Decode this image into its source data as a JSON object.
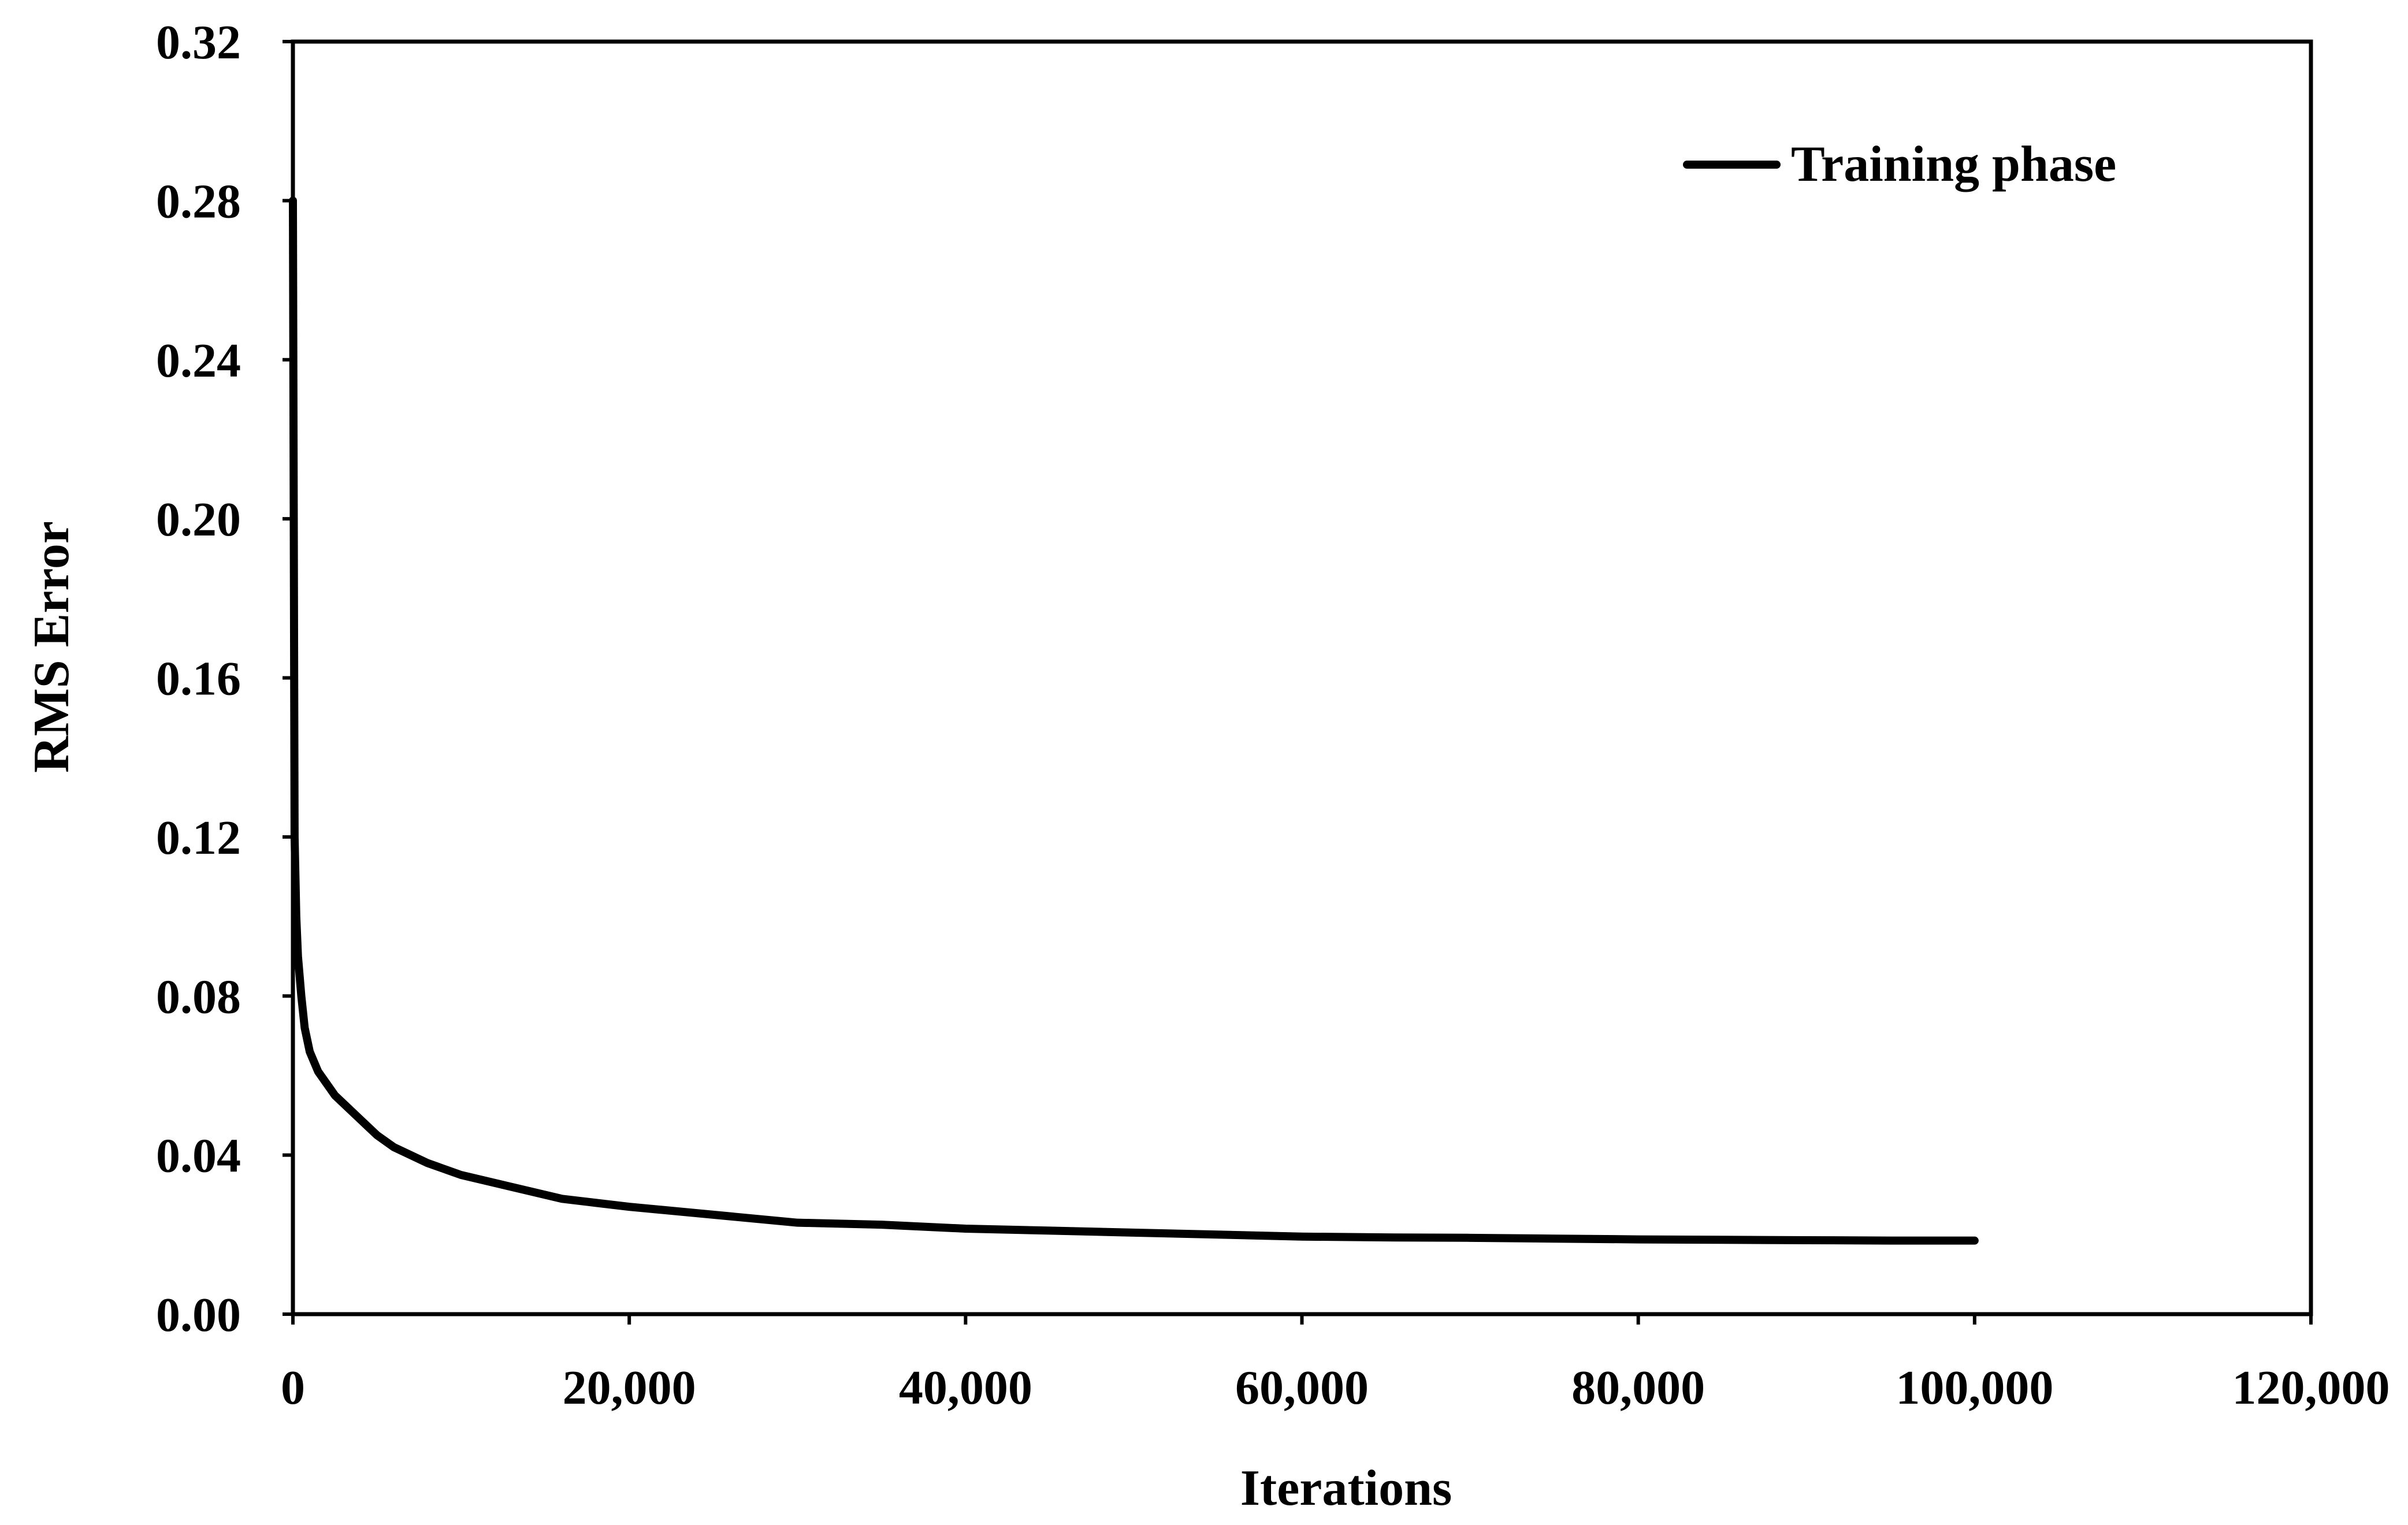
{
  "chart_data": {
    "type": "line",
    "title": "",
    "xlabel": "Iterations",
    "ylabel": "RMS Error",
    "xlim": [
      0,
      120000
    ],
    "ylim": [
      0,
      0.32
    ],
    "x_ticks": [
      0,
      20000,
      40000,
      60000,
      80000,
      100000,
      120000
    ],
    "x_tick_labels": [
      "0",
      "20,000",
      "40,000",
      "60,000",
      "80,000",
      "100,000",
      "120,000"
    ],
    "y_ticks": [
      0,
      0.04,
      0.08,
      0.12,
      0.16,
      0.2,
      0.24,
      0.28,
      0.32
    ],
    "y_tick_labels": [
      "0.00",
      "0.04",
      "0.08",
      "0.12",
      "0.16",
      "0.20",
      "0.24",
      "0.28",
      "0.32"
    ],
    "grid": false,
    "legend_position": "top-right",
    "series": [
      {
        "name": "Training phase",
        "color": "#000000",
        "x": [
          0,
          50,
          100,
          200,
          300,
          500,
          700,
          1000,
          1500,
          2000,
          2500,
          3000,
          4000,
          5000,
          6000,
          7000,
          8000,
          10000,
          12000,
          14000,
          16000,
          18000,
          20000,
          25000,
          30000,
          35000,
          40000,
          45000,
          50000,
          55000,
          60000,
          65000,
          70000,
          75000,
          80000,
          85000,
          90000,
          95000,
          100000
        ],
        "y": [
          0.28,
          0.2,
          0.12,
          0.1,
          0.09,
          0.08,
          0.072,
          0.066,
          0.061,
          0.058,
          0.055,
          0.053,
          0.049,
          0.045,
          0.042,
          0.04,
          0.038,
          0.035,
          0.033,
          0.031,
          0.029,
          0.028,
          0.027,
          0.025,
          0.023,
          0.0225,
          0.0215,
          0.021,
          0.0205,
          0.02,
          0.0195,
          0.0193,
          0.0192,
          0.019,
          0.0188,
          0.0187,
          0.0186,
          0.0185,
          0.0185
        ]
      }
    ]
  }
}
